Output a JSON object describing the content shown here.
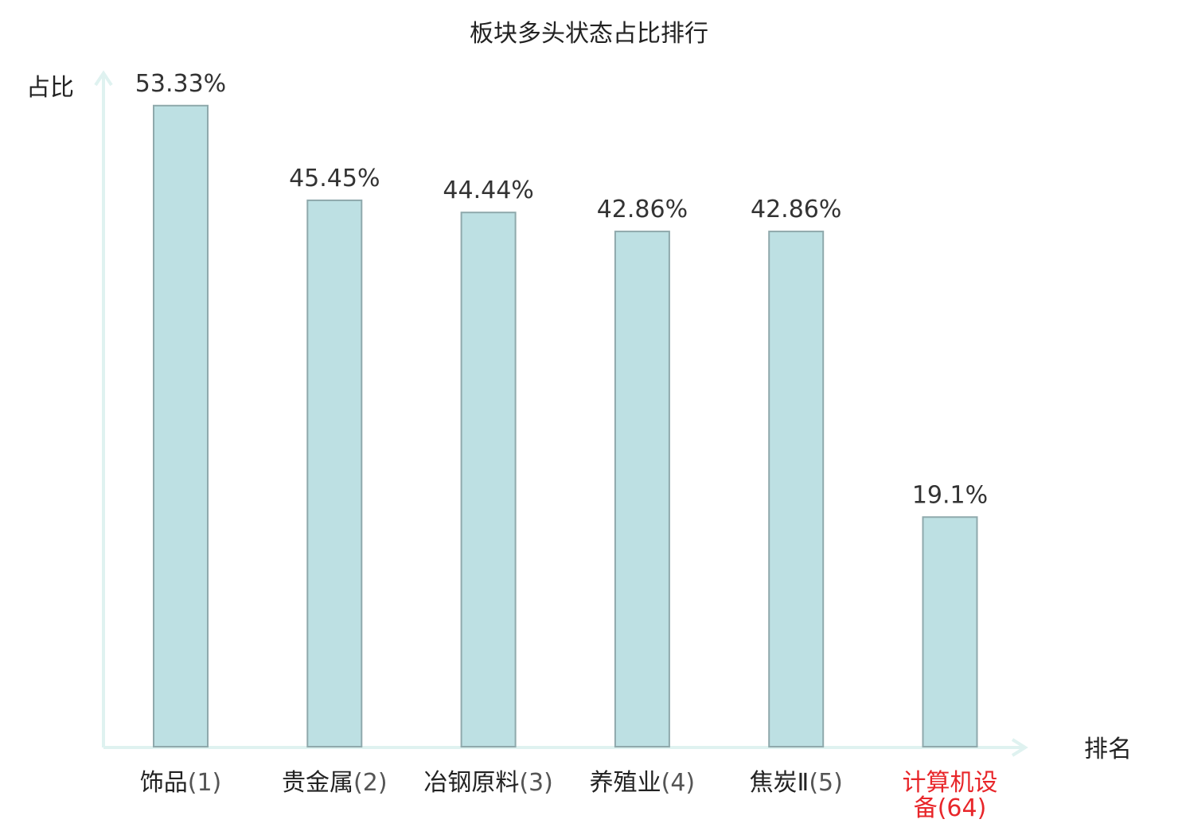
{
  "chart_data": {
    "type": "bar",
    "title": "板块多头状态占比排行",
    "ylabel": "占比",
    "xlabel": "排名",
    "ylim": [
      0,
      55.5
    ],
    "grid": false,
    "categories": [
      {
        "name": "饰品",
        "rank": "(1)"
      },
      {
        "name": "贵金属",
        "rank": "(2)"
      },
      {
        "name": "冶钢原料",
        "rank": "(3)"
      },
      {
        "name": "养殖业",
        "rank": "(4)"
      },
      {
        "name": "焦炭Ⅱ",
        "rank": "(5)"
      },
      {
        "name": "计算机设备",
        "rank": "(64)",
        "highlight": true
      }
    ],
    "values": [
      53.33,
      45.45,
      44.44,
      42.86,
      42.86,
      19.1
    ],
    "value_labels": [
      "53.33%",
      "45.45%",
      "44.44%",
      "42.86%",
      "42.86%",
      "19.1%"
    ],
    "colors": {
      "bar_fill": "#bde0e3",
      "bar_stroke": "#8fa9ac",
      "axis": "#dff2f0",
      "highlight_text": "#e8262a"
    }
  }
}
